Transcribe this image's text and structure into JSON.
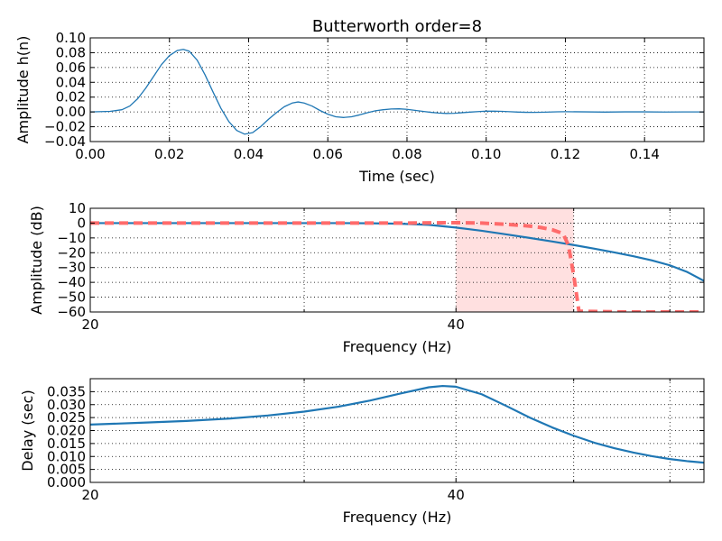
{
  "chart_data": [
    {
      "type": "line",
      "title": "Butterworth order=8",
      "xlabel": "Time (sec)",
      "ylabel": "Amplitude h(n)",
      "xlim": [
        0.0,
        0.155
      ],
      "ylim": [
        -0.04,
        0.1
      ],
      "xticks": [
        0.0,
        0.02,
        0.04,
        0.06,
        0.08,
        0.1,
        0.12,
        0.14
      ],
      "xtick_labels": [
        "0.00",
        "0.02",
        "0.04",
        "0.06",
        "0.08",
        "0.10",
        "0.12",
        "0.14"
      ],
      "yticks": [
        -0.04,
        -0.02,
        0.0,
        0.02,
        0.04,
        0.06,
        0.08,
        0.1
      ],
      "ytick_labels": [
        "−0.04",
        "−0.02",
        "0.00",
        "0.02",
        "0.04",
        "0.06",
        "0.08",
        "0.10"
      ],
      "grid": true,
      "series": [
        {
          "color": "#1f77b4",
          "x": [
            0.0,
            0.005,
            0.008,
            0.01,
            0.012,
            0.014,
            0.016,
            0.018,
            0.02,
            0.022,
            0.0235,
            0.025,
            0.027,
            0.029,
            0.031,
            0.033,
            0.035,
            0.037,
            0.039,
            0.041,
            0.043,
            0.045,
            0.047,
            0.049,
            0.051,
            0.0525,
            0.054,
            0.056,
            0.058,
            0.06,
            0.062,
            0.064,
            0.066,
            0.068,
            0.07,
            0.072,
            0.074,
            0.076,
            0.078,
            0.08,
            0.082,
            0.084,
            0.086,
            0.088,
            0.09,
            0.092,
            0.094,
            0.096,
            0.098,
            0.1,
            0.102,
            0.104,
            0.106,
            0.108,
            0.11,
            0.112,
            0.114,
            0.116,
            0.118,
            0.12,
            0.125,
            0.13,
            0.135,
            0.14,
            0.145,
            0.15,
            0.155
          ],
          "y": [
            0.0,
            0.0008,
            0.003,
            0.008,
            0.018,
            0.032,
            0.048,
            0.064,
            0.076,
            0.083,
            0.0845,
            0.082,
            0.07,
            0.05,
            0.027,
            0.005,
            -0.013,
            -0.025,
            -0.03,
            -0.028,
            -0.02,
            -0.01,
            -0.001,
            0.007,
            0.012,
            0.0135,
            0.012,
            0.008,
            0.002,
            -0.003,
            -0.0065,
            -0.0075,
            -0.0065,
            -0.004,
            -0.001,
            0.0015,
            0.003,
            0.004,
            0.0042,
            0.0035,
            0.0022,
            0.0008,
            -0.0005,
            -0.0015,
            -0.002,
            -0.0018,
            -0.001,
            -0.0002,
            0.0005,
            0.001,
            0.0011,
            0.0008,
            0.0003,
            -0.0002,
            -0.0005,
            -0.0006,
            -0.0004,
            -0.0001,
            0.0002,
            0.0003,
            0.0001,
            -0.0002,
            0.0001,
            0.0001,
            -0.0001,
            0.0,
            0.0
          ]
        }
      ]
    },
    {
      "type": "line",
      "xlabel": "Frequency (Hz)",
      "ylabel": "Amplitude (dB)",
      "xscale": "log",
      "xlim": [
        20,
        64
      ],
      "ylim": [
        -60,
        10
      ],
      "xticks": [
        20,
        40
      ],
      "xtick_labels": [
        "20",
        "40"
      ],
      "minor_xticks": [
        30,
        50,
        60
      ],
      "yticks": [
        -60,
        -50,
        -40,
        -30,
        -20,
        -10,
        0,
        10
      ],
      "ytick_labels": [
        "−60",
        "−50",
        "−40",
        "−30",
        "−20",
        "−10",
        "0",
        "10"
      ],
      "grid": true,
      "shaded_region": {
        "x": [
          40,
          50
        ],
        "color": "#ffe0e0"
      },
      "series": [
        {
          "style": "solid",
          "color": "#1f77b4",
          "x": [
            20,
            22,
            24,
            26,
            28,
            30,
            32,
            34,
            36,
            38,
            40,
            42,
            44,
            46,
            48,
            50,
            52,
            54,
            56,
            58,
            60,
            62,
            64
          ],
          "y": [
            0,
            0,
            0,
            0,
            0,
            0,
            0,
            -0.1,
            -0.4,
            -1.2,
            -3.0,
            -5.2,
            -7.6,
            -10.0,
            -12.4,
            -14.8,
            -17.3,
            -19.8,
            -22.4,
            -25.2,
            -28.5,
            -33.0,
            -39.0
          ]
        },
        {
          "style": "dashed",
          "color": "#ff6b6b",
          "x": [
            20,
            30,
            36,
            40,
            42,
            44,
            46,
            47,
            48,
            49,
            49.5,
            50,
            50.5,
            55,
            60,
            64
          ],
          "y": [
            0,
            0,
            0,
            0.3,
            0,
            -0.8,
            -2.0,
            -3.0,
            -4.5,
            -7.0,
            -15.0,
            -35.0,
            -59.5,
            -60,
            -60,
            -60
          ]
        }
      ]
    },
    {
      "type": "line",
      "xlabel": "Frequency (Hz)",
      "ylabel": "Delay (sec)",
      "xscale": "log",
      "xlim": [
        20,
        64
      ],
      "ylim": [
        0.0,
        0.04
      ],
      "xticks": [
        20,
        40
      ],
      "xtick_labels": [
        "20",
        "40"
      ],
      "minor_xticks": [
        30,
        50,
        60
      ],
      "yticks": [
        0.0,
        0.005,
        0.01,
        0.015,
        0.02,
        0.025,
        0.03,
        0.035
      ],
      "ytick_labels": [
        "0.000",
        "0.005",
        "0.010",
        "0.015",
        "0.020",
        "0.025",
        "0.030",
        "0.035"
      ],
      "grid": true,
      "series": [
        {
          "style": "solid",
          "color": "#1f77b4",
          "x": [
            20,
            22,
            24,
            26,
            28,
            30,
            32,
            34,
            36,
            38,
            39,
            40,
            42,
            44,
            46,
            48,
            50,
            52,
            54,
            56,
            58,
            60,
            62,
            64
          ],
          "y": [
            0.0223,
            0.023,
            0.0237,
            0.0246,
            0.0258,
            0.0273,
            0.0292,
            0.0316,
            0.0343,
            0.0367,
            0.0372,
            0.0369,
            0.034,
            0.0295,
            0.025,
            0.0212,
            0.018,
            0.0153,
            0.0132,
            0.0115,
            0.0101,
            0.009,
            0.0082,
            0.0076
          ]
        }
      ]
    }
  ]
}
